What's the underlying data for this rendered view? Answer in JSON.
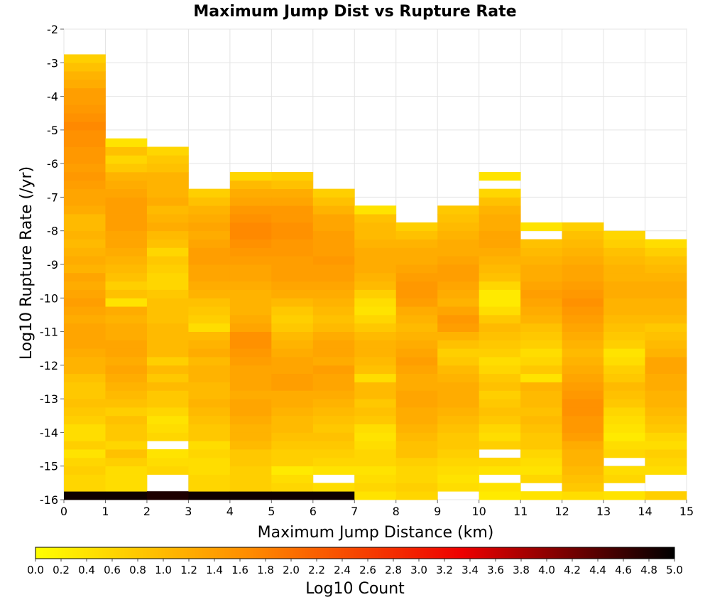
{
  "chart_data": {
    "type": "heatmap",
    "title": "Maximum Jump Dist vs Rupture Rate",
    "xlabel": "Maximum Jump Distance (km)",
    "ylabel": "Log10 Rupture Rate (/yr)",
    "xlim": [
      0,
      15
    ],
    "ylim": [
      -16,
      -2
    ],
    "x_ticks": [
      "0",
      "1",
      "2",
      "3",
      "4",
      "5",
      "6",
      "7",
      "8",
      "9",
      "10",
      "11",
      "12",
      "13",
      "14",
      "15"
    ],
    "y_ticks": [
      "-2",
      "-3",
      "-4",
      "-5",
      "-6",
      "-7",
      "-8",
      "-9",
      "-10",
      "-11",
      "-12",
      "-13",
      "-14",
      "-15",
      "-16"
    ],
    "x_bin_edges": [
      0,
      1,
      2,
      3,
      4,
      5,
      6,
      7,
      8,
      9,
      10,
      11,
      12,
      13,
      14,
      15
    ],
    "y_bin_size": 0.25,
    "y_bin_start": -16,
    "colorbar": {
      "label": "Log10 Count",
      "min": 0.0,
      "max": 5.0,
      "ticks": [
        "0.0",
        "0.2",
        "0.4",
        "0.6",
        "0.8",
        "1.0",
        "1.2",
        "1.4",
        "1.6",
        "1.8",
        "2.0",
        "2.2",
        "2.4",
        "2.6",
        "2.8",
        "3.0",
        "3.2",
        "3.4",
        "3.6",
        "3.8",
        "4.0",
        "4.2",
        "4.4",
        "4.6",
        "4.8",
        "5.0"
      ],
      "colors": [
        "#ffff00",
        "#ff8c00",
        "#ee0000",
        "#000000"
      ]
    },
    "columns": [
      {
        "x": 0,
        "values": [
          4.9,
          0.6,
          0.6,
          0.7,
          0.6,
          0.4,
          0.7,
          0.5,
          0.5,
          0.7,
          0.8,
          0.9,
          0.8,
          0.8,
          0.9,
          1.1,
          1.1,
          1.2,
          1.3,
          1.3,
          1.3,
          1.2,
          1.3,
          1.4,
          1.3,
          1.2,
          1.3,
          1.1,
          1.2,
          1.1,
          1.0,
          1.1,
          1.0,
          1.0,
          1.2,
          1.3,
          1.3,
          1.4,
          1.5,
          1.4,
          1.5,
          1.5,
          1.6,
          1.6,
          1.7,
          1.6,
          1.5,
          1.4,
          1.4,
          1.2,
          1.1,
          0.9,
          0.7
        ]
      },
      {
        "x": 1,
        "values": [
          4.9,
          0.5,
          0.5,
          0.5,
          0.7,
          0.9,
          0.6,
          0.8,
          0.8,
          0.9,
          0.7,
          0.9,
          1.0,
          1.1,
          1.2,
          1.3,
          1.2,
          1.3,
          1.3,
          1.2,
          1.2,
          1.1,
          1.2,
          0.4,
          0.9,
          0.7,
          0.9,
          1.0,
          1.1,
          1.2,
          1.3,
          1.3,
          1.4,
          1.4,
          1.4,
          1.4,
          1.3,
          1.2,
          1.1,
          0.8,
          0.6,
          0.9,
          0.4
        ]
      },
      {
        "x": 2,
        "values": [
          4.8,
          null,
          null,
          0.6,
          0.5,
          0.4,
          null,
          0.6,
          0.5,
          0.4,
          0.6,
          0.8,
          0.8,
          1.0,
          0.8,
          1.0,
          0.7,
          1.0,
          1.0,
          1.0,
          1.0,
          0.9,
          0.9,
          0.9,
          0.8,
          0.6,
          0.6,
          0.7,
          0.8,
          0.6,
          0.9,
          1.0,
          1.2,
          1.1,
          1.0,
          1.2,
          1.1,
          1.1,
          1.1,
          0.9,
          0.8,
          0.6
        ]
      },
      {
        "x": 3,
        "values": [
          4.9,
          0.6,
          0.6,
          0.5,
          0.5,
          0.6,
          0.5,
          0.8,
          0.8,
          0.9,
          1.0,
          1.1,
          1.0,
          1.0,
          1.1,
          1.1,
          1.0,
          1.2,
          1.1,
          1.0,
          0.5,
          0.7,
          0.8,
          0.9,
          1.1,
          1.2,
          1.3,
          1.3,
          1.4,
          1.4,
          1.3,
          1.2,
          1.3,
          1.2,
          1.1,
          0.9,
          0.7
        ]
      },
      {
        "x": 4,
        "values": [
          4.9,
          0.7,
          0.7,
          0.7,
          0.8,
          0.8,
          1.0,
          1.1,
          1.1,
          1.2,
          1.3,
          1.3,
          1.2,
          1.3,
          1.3,
          1.3,
          1.4,
          1.5,
          1.6,
          1.6,
          1.3,
          1.2,
          1.1,
          1.1,
          1.1,
          1.2,
          1.3,
          1.3,
          1.4,
          1.5,
          1.6,
          1.7,
          1.7,
          1.6,
          1.5,
          1.3,
          1.2,
          1.0,
          0.6
        ]
      },
      {
        "x": 5,
        "values": [
          4.9,
          0.6,
          0.5,
          0.3,
          0.7,
          0.7,
          0.8,
          0.9,
          1.0,
          1.0,
          1.1,
          1.2,
          1.2,
          1.4,
          1.4,
          1.3,
          1.3,
          1.2,
          1.1,
          1.0,
          0.8,
          0.7,
          0.8,
          1.0,
          1.2,
          1.3,
          1.4,
          1.4,
          1.4,
          1.5,
          1.5,
          1.6,
          1.6,
          1.5,
          1.5,
          1.3,
          1.2,
          0.9,
          0.7
        ]
      },
      {
        "x": 6,
        "values": [
          4.9,
          0.5,
          null,
          0.4,
          0.6,
          0.7,
          0.8,
          0.9,
          0.8,
          0.9,
          1.0,
          1.1,
          1.2,
          1.3,
          1.3,
          1.4,
          1.2,
          1.3,
          1.3,
          1.2,
          1.0,
          0.9,
          1.0,
          1.1,
          1.2,
          1.3,
          1.4,
          1.4,
          1.5,
          1.4,
          1.4,
          1.4,
          1.3,
          1.3,
          1.1,
          0.9,
          0.7
        ]
      },
      {
        "x": 7,
        "values": [
          0.4,
          0.6,
          0.5,
          0.4,
          0.6,
          0.6,
          0.5,
          0.4,
          0.5,
          0.8,
          0.9,
          0.8,
          1.0,
          1.0,
          0.5,
          0.9,
          1.0,
          1.1,
          1.1,
          1.0,
          0.8,
          0.6,
          0.4,
          0.5,
          0.7,
          1.0,
          1.1,
          1.2,
          1.2,
          1.2,
          1.1,
          1.0,
          1.0,
          0.9,
          0.4
        ]
      },
      {
        "x": 8,
        "values": [
          0.6,
          0.7,
          0.6,
          0.6,
          0.7,
          0.9,
          0.9,
          1.0,
          1.1,
          1.2,
          1.2,
          1.3,
          1.3,
          1.2,
          1.2,
          1.3,
          1.4,
          1.3,
          1.2,
          1.1,
          1.0,
          1.1,
          1.2,
          1.4,
          1.5,
          1.5,
          1.4,
          1.3,
          1.2,
          1.2,
          1.1,
          0.9,
          0.7
        ]
      },
      {
        "x": 9,
        "values": [
          null,
          0.5,
          0.4,
          0.5,
          0.6,
          0.7,
          0.8,
          0.8,
          0.9,
          1.0,
          1.1,
          1.2,
          1.2,
          1.2,
          1.1,
          1.0,
          0.8,
          0.7,
          0.9,
          1.1,
          1.4,
          1.5,
          1.3,
          1.1,
          1.2,
          1.3,
          1.4,
          1.4,
          1.3,
          1.2,
          1.2,
          1.1,
          1.0,
          0.9,
          0.8
        ]
      },
      {
        "x": 10,
        "values": [
          0.3,
          0.4,
          null,
          0.4,
          0.6,
          null,
          0.7,
          0.5,
          0.6,
          0.8,
          0.9,
          0.8,
          0.7,
          0.9,
          0.8,
          0.6,
          0.5,
          0.7,
          0.8,
          0.9,
          1.0,
          0.8,
          0.5,
          0.3,
          0.3,
          0.6,
          0.9,
          1.0,
          1.1,
          1.2,
          1.3,
          1.3,
          1.2,
          1.2,
          1.1,
          0.9,
          0.6,
          null,
          0.4
        ]
      },
      {
        "x": 11,
        "values": [
          0.4,
          null,
          0.6,
          0.4,
          0.5,
          0.6,
          0.8,
          0.8,
          0.9,
          1.0,
          0.9,
          1.0,
          1.0,
          1.1,
          0.4,
          0.8,
          0.6,
          0.5,
          0.7,
          0.8,
          0.9,
          1.1,
          1.2,
          1.3,
          1.4,
          1.3,
          1.2,
          1.2,
          1.1,
          1.0,
          0.9,
          null,
          0.4
        ]
      },
      {
        "x": 12,
        "values": [
          0.5,
          0.8,
          0.9,
          1.0,
          1.1,
          1.1,
          1.2,
          1.4,
          1.5,
          1.5,
          1.6,
          1.6,
          1.5,
          1.4,
          1.3,
          1.2,
          1.1,
          1.0,
          1.1,
          1.2,
          1.3,
          1.4,
          1.5,
          1.6,
          1.5,
          1.4,
          1.3,
          1.3,
          1.2,
          1.1,
          1.0,
          0.9,
          0.7
        ]
      },
      {
        "x": 13,
        "values": [
          0.4,
          null,
          0.6,
          0.5,
          null,
          0.6,
          0.5,
          0.3,
          0.4,
          0.5,
          0.6,
          0.8,
          0.9,
          1.0,
          0.8,
          0.7,
          0.5,
          0.4,
          0.7,
          0.8,
          0.9,
          1.0,
          1.1,
          1.1,
          1.2,
          1.2,
          1.1,
          1.1,
          1.0,
          0.9,
          0.7,
          0.6
        ]
      },
      {
        "x": 14,
        "values": [
          0.7,
          null,
          null,
          0.5,
          0.6,
          0.7,
          0.5,
          0.6,
          0.8,
          0.9,
          1.0,
          1.1,
          1.1,
          1.2,
          1.2,
          1.3,
          1.3,
          1.1,
          1.0,
          0.9,
          0.8,
          1.0,
          1.1,
          1.1,
          1.2,
          1.2,
          1.1,
          1.0,
          0.9,
          0.7,
          0.5
        ]
      }
    ]
  }
}
